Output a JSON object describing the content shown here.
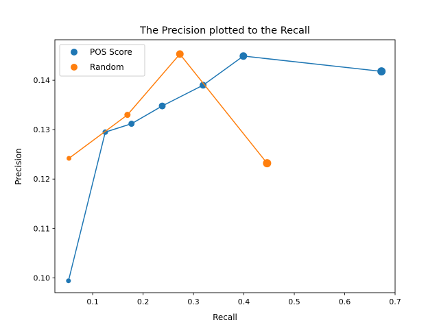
{
  "chart_data": {
    "type": "scatter",
    "title": "The Precision plotted to the Recall",
    "xlabel": "Recall",
    "ylabel": "Precision",
    "xlim": [
      0.025,
      0.7
    ],
    "ylim": [
      0.097,
      0.1482
    ],
    "xticks": [
      0.1,
      0.2,
      0.3,
      0.4,
      0.5,
      0.6,
      0.7
    ],
    "yticks": [
      0.1,
      0.11,
      0.12,
      0.13,
      0.14
    ],
    "xtick_labels": [
      "0.1",
      "0.2",
      "0.3",
      "0.4",
      "0.5",
      "0.6",
      "0.7"
    ],
    "ytick_labels": [
      "0.10",
      "0.11",
      "0.12",
      "0.13",
      "0.14"
    ],
    "grid": false,
    "legend_position": "top-left",
    "series": [
      {
        "name": "POS Score",
        "color": "#1f77b4",
        "points": [
          {
            "x": 0.052,
            "y": 0.0994,
            "size": 3.5
          },
          {
            "x": 0.125,
            "y": 0.1295,
            "size": 4
          },
          {
            "x": 0.177,
            "y": 0.1312,
            "size": 4.5
          },
          {
            "x": 0.238,
            "y": 0.1348,
            "size": 5
          },
          {
            "x": 0.319,
            "y": 0.139,
            "size": 5
          },
          {
            "x": 0.399,
            "y": 0.1449,
            "size": 5.5
          },
          {
            "x": 0.673,
            "y": 0.1418,
            "size": 6
          }
        ]
      },
      {
        "name": "Random",
        "color": "#ff7f0e",
        "points": [
          {
            "x": 0.053,
            "y": 0.1242,
            "size": 3.5
          },
          {
            "x": 0.169,
            "y": 0.133,
            "size": 4.5
          },
          {
            "x": 0.273,
            "y": 0.1453,
            "size": 5.5
          },
          {
            "x": 0.446,
            "y": 0.1232,
            "size": 6
          }
        ]
      }
    ]
  }
}
